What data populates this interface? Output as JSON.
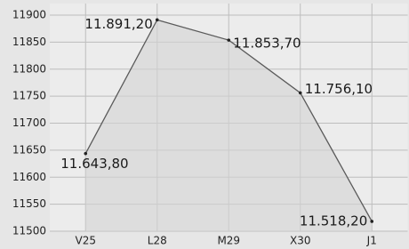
{
  "chart_data": {
    "type": "line",
    "categories": [
      "V25",
      "L28",
      "M29",
      "X30",
      "J1"
    ],
    "values": [
      11643.8,
      11891.2,
      11853.7,
      11756.1,
      11518.2
    ],
    "value_labels": [
      "11.643,80",
      "11.891,20",
      "11.853,70",
      "11.756,10",
      "11.518,20"
    ],
    "color": "#5a5a5a",
    "ylim": [
      11500,
      11900
    ],
    "yticks": [
      11500,
      11550,
      11600,
      11650,
      11700,
      11750,
      11800,
      11850,
      11900
    ],
    "grid": true
  }
}
